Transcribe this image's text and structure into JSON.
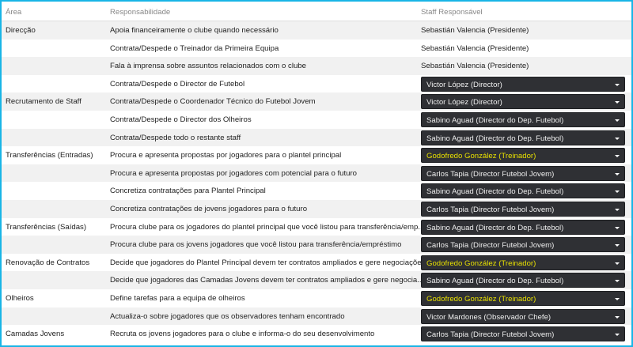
{
  "header": {
    "area": "Área",
    "responsibility": "Responsabilidade",
    "staff": "Staff Responsável"
  },
  "colors": {
    "border": "#19b5e6",
    "dropdown_bg": "#2f3034",
    "highlight_text": "#e8e000"
  },
  "rows": [
    {
      "area": "Direcção",
      "responsibility": "Apoia financeiramente o clube quando necessário",
      "staff": "Sebastián Valencia (Presidente)",
      "dropdown": false,
      "highlight": false
    },
    {
      "area": "",
      "responsibility": "Contrata/Despede o Treinador da Primeira Equipa",
      "staff": "Sebastián Valencia (Presidente)",
      "dropdown": false,
      "highlight": false
    },
    {
      "area": "",
      "responsibility": "Fala à imprensa sobre assuntos relacionados com o clube",
      "staff": "Sebastián Valencia (Presidente)",
      "dropdown": false,
      "highlight": false
    },
    {
      "area": "",
      "responsibility": "Contrata/Despede o Director de Futebol",
      "staff": "Victor López (Director)",
      "dropdown": true,
      "highlight": false
    },
    {
      "area": "Recrutamento de Staff",
      "responsibility": "Contrata/Despede o Coordenador Técnico do Futebol Jovem",
      "staff": "Victor López (Director)",
      "dropdown": true,
      "highlight": false
    },
    {
      "area": "",
      "responsibility": "Contrata/Despede o Director dos Olheiros",
      "staff": "Sabino Aguad (Director do Dep. Futebol)",
      "dropdown": true,
      "highlight": false
    },
    {
      "area": "",
      "responsibility": "Contrata/Despede todo o restante staff",
      "staff": "Sabino Aguad (Director do Dep. Futebol)",
      "dropdown": true,
      "highlight": false
    },
    {
      "area": "Transferências (Entradas)",
      "responsibility": "Procura e apresenta propostas por jogadores para o plantel principal",
      "staff": "Godofredo González (Treinador)",
      "dropdown": true,
      "highlight": true
    },
    {
      "area": "",
      "responsibility": "Procura e apresenta propostas por jogadores com potencial para o futuro",
      "staff": "Carlos Tapia (Director Futebol Jovem)",
      "dropdown": true,
      "highlight": false
    },
    {
      "area": "",
      "responsibility": "Concretiza contratações para Plantel Principal",
      "staff": "Sabino Aguad (Director do Dep. Futebol)",
      "dropdown": true,
      "highlight": false
    },
    {
      "area": "",
      "responsibility": "Concretiza contratações de jovens jogadores para o futuro",
      "staff": "Carlos Tapia (Director Futebol Jovem)",
      "dropdown": true,
      "highlight": false
    },
    {
      "area": "Transferências (Saídas)",
      "responsibility": "Procura clube para os jogadores do plantel principal que você listou para transferência/emp...",
      "staff": "Sabino Aguad (Director do Dep. Futebol)",
      "dropdown": true,
      "highlight": false
    },
    {
      "area": "",
      "responsibility": "Procura clube para os jovens jogadores que você listou para transferência/empréstimo",
      "staff": "Carlos Tapia (Director Futebol Jovem)",
      "dropdown": true,
      "highlight": false
    },
    {
      "area": "Renovação de Contratos",
      "responsibility": "Decide que jogadores do Plantel Principal devem ter contratos ampliados e gere negociações",
      "staff": "Godofredo González (Treinador)",
      "dropdown": true,
      "highlight": true
    },
    {
      "area": "",
      "responsibility": "Decide que jogadores das Camadas Jovens devem ter contratos ampliados e gere negocia...",
      "staff": "Sabino Aguad (Director do Dep. Futebol)",
      "dropdown": true,
      "highlight": false
    },
    {
      "area": "Olheiros",
      "responsibility": "Define tarefas para a equipa de olheiros",
      "staff": "Godofredo González (Treinador)",
      "dropdown": true,
      "highlight": true
    },
    {
      "area": "",
      "responsibility": "Actualiza-o sobre jogadores que os observadores tenham encontrado",
      "staff": "Victor Mardones (Observador Chefe)",
      "dropdown": true,
      "highlight": false
    },
    {
      "area": "Camadas Jovens",
      "responsibility": "Recruta os jovens jogadores para o clube e informa-o do seu desenvolvimento",
      "staff": "Carlos Tapia (Director Futebol Jovem)",
      "dropdown": true,
      "highlight": false
    }
  ]
}
